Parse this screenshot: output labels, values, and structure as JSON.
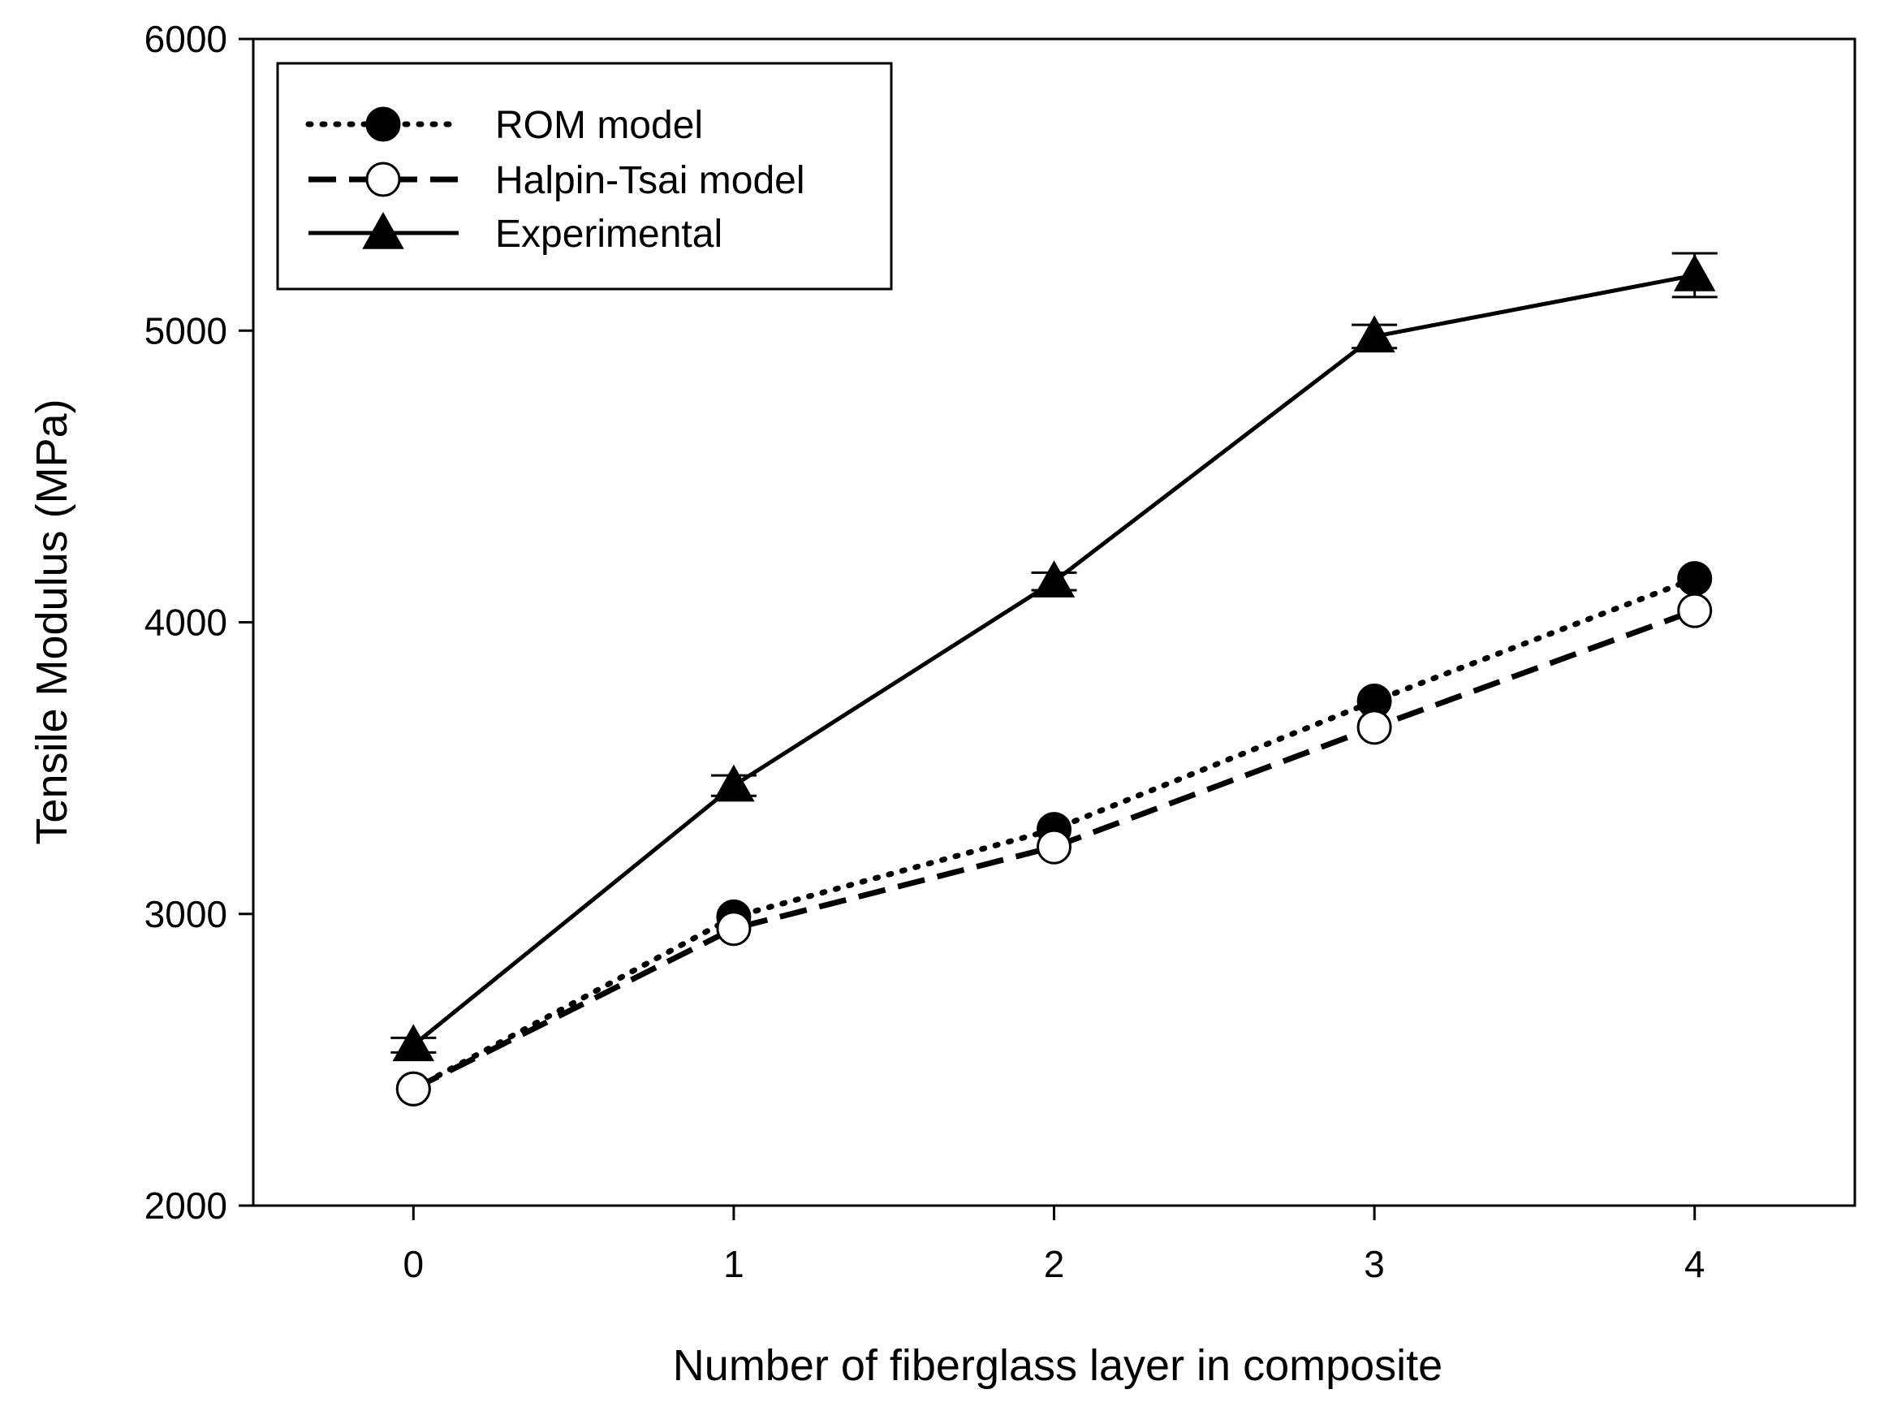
{
  "chart_data": {
    "type": "line",
    "title": "",
    "xlabel": "Number of fiberglass layer in composite",
    "ylabel": "Tensile Modulus (MPa)",
    "xlim": [
      -0.5,
      4.5
    ],
    "ylim": [
      2000,
      6000
    ],
    "x": [
      0,
      1,
      2,
      3,
      4
    ],
    "xticks": [
      "0",
      "1",
      "2",
      "3",
      "4"
    ],
    "yticks": [
      "2000",
      "3000",
      "4000",
      "5000",
      "6000"
    ],
    "ytick_values": [
      2000,
      3000,
      4000,
      5000,
      6000
    ],
    "grid": false,
    "legend_position": "top-left",
    "series": [
      {
        "name": "ROM model",
        "values": [
          2400,
          2990,
          3290,
          3730,
          4150
        ],
        "line_style": "dotted",
        "marker": "filled-circle",
        "color": "#000000"
      },
      {
        "name": "Halpin-Tsai model",
        "values": [
          2400,
          2950,
          3230,
          3640,
          4040
        ],
        "line_style": "dashed",
        "marker": "open-circle",
        "color": "#000000"
      },
      {
        "name": "Experimental",
        "values": [
          2550,
          3440,
          4140,
          4980,
          5190
        ],
        "errors": [
          25,
          35,
          30,
          40,
          75
        ],
        "line_style": "solid",
        "marker": "filled-triangle",
        "color": "#000000"
      }
    ]
  }
}
